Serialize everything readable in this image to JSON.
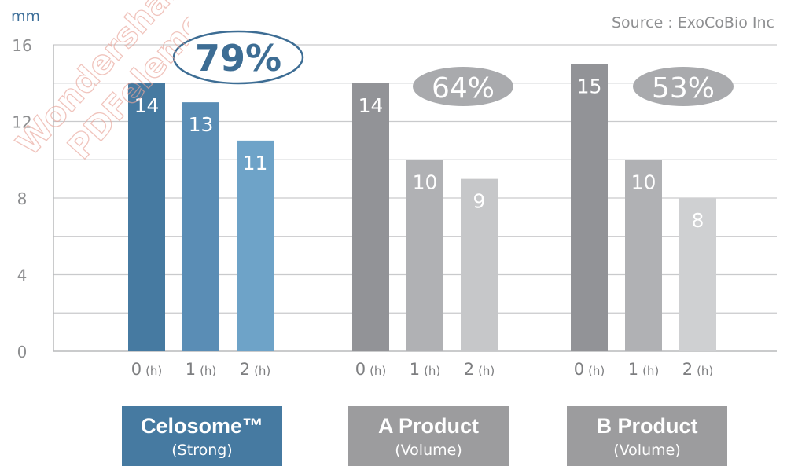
{
  "chart_data": {
    "type": "bar",
    "yunit": "mm",
    "ylim": [
      0,
      16
    ],
    "yticks": [
      0,
      4,
      8,
      12,
      16
    ],
    "grid": true,
    "source": "Source : ExoCoBio Inc",
    "groups": [
      {
        "name": "Celosome™",
        "subtitle": "(Strong)",
        "categories": [
          "0 (h)",
          "1 (h)",
          "2 (h)"
        ],
        "values": [
          14,
          13,
          11
        ],
        "value_labels": [
          "14",
          "13",
          "11"
        ],
        "colors": [
          "#467aa1",
          "#5a8db5",
          "#6ea3c8"
        ],
        "caption_color": "#467aa1",
        "reduction": "79%",
        "reduction_style": "outline"
      },
      {
        "name": "A Product",
        "subtitle": "(Volume)",
        "categories": [
          "0 (h)",
          "1 (h)",
          "2 (h)"
        ],
        "values": [
          14,
          10,
          9
        ],
        "value_labels": [
          "14",
          "10",
          "9"
        ],
        "colors": [
          "#929397",
          "#b0b1b4",
          "#c6c7c9"
        ],
        "caption_color": "#9c9c9e",
        "reduction": "64%",
        "reduction_style": "filled"
      },
      {
        "name": "B Product",
        "subtitle": "(Volume)",
        "categories": [
          "0 (h)",
          "1 (h)",
          "2 (h)"
        ],
        "values": [
          15,
          10,
          8
        ],
        "value_labels": [
          "15",
          "10",
          "8"
        ],
        "colors": [
          "#929397",
          "#b0b1b4",
          "#cfd0d2"
        ],
        "caption_color": "#9c9c9e",
        "reduction": "53%",
        "reduction_style": "filled"
      }
    ]
  },
  "watermark": "Wondershare PDFelement"
}
